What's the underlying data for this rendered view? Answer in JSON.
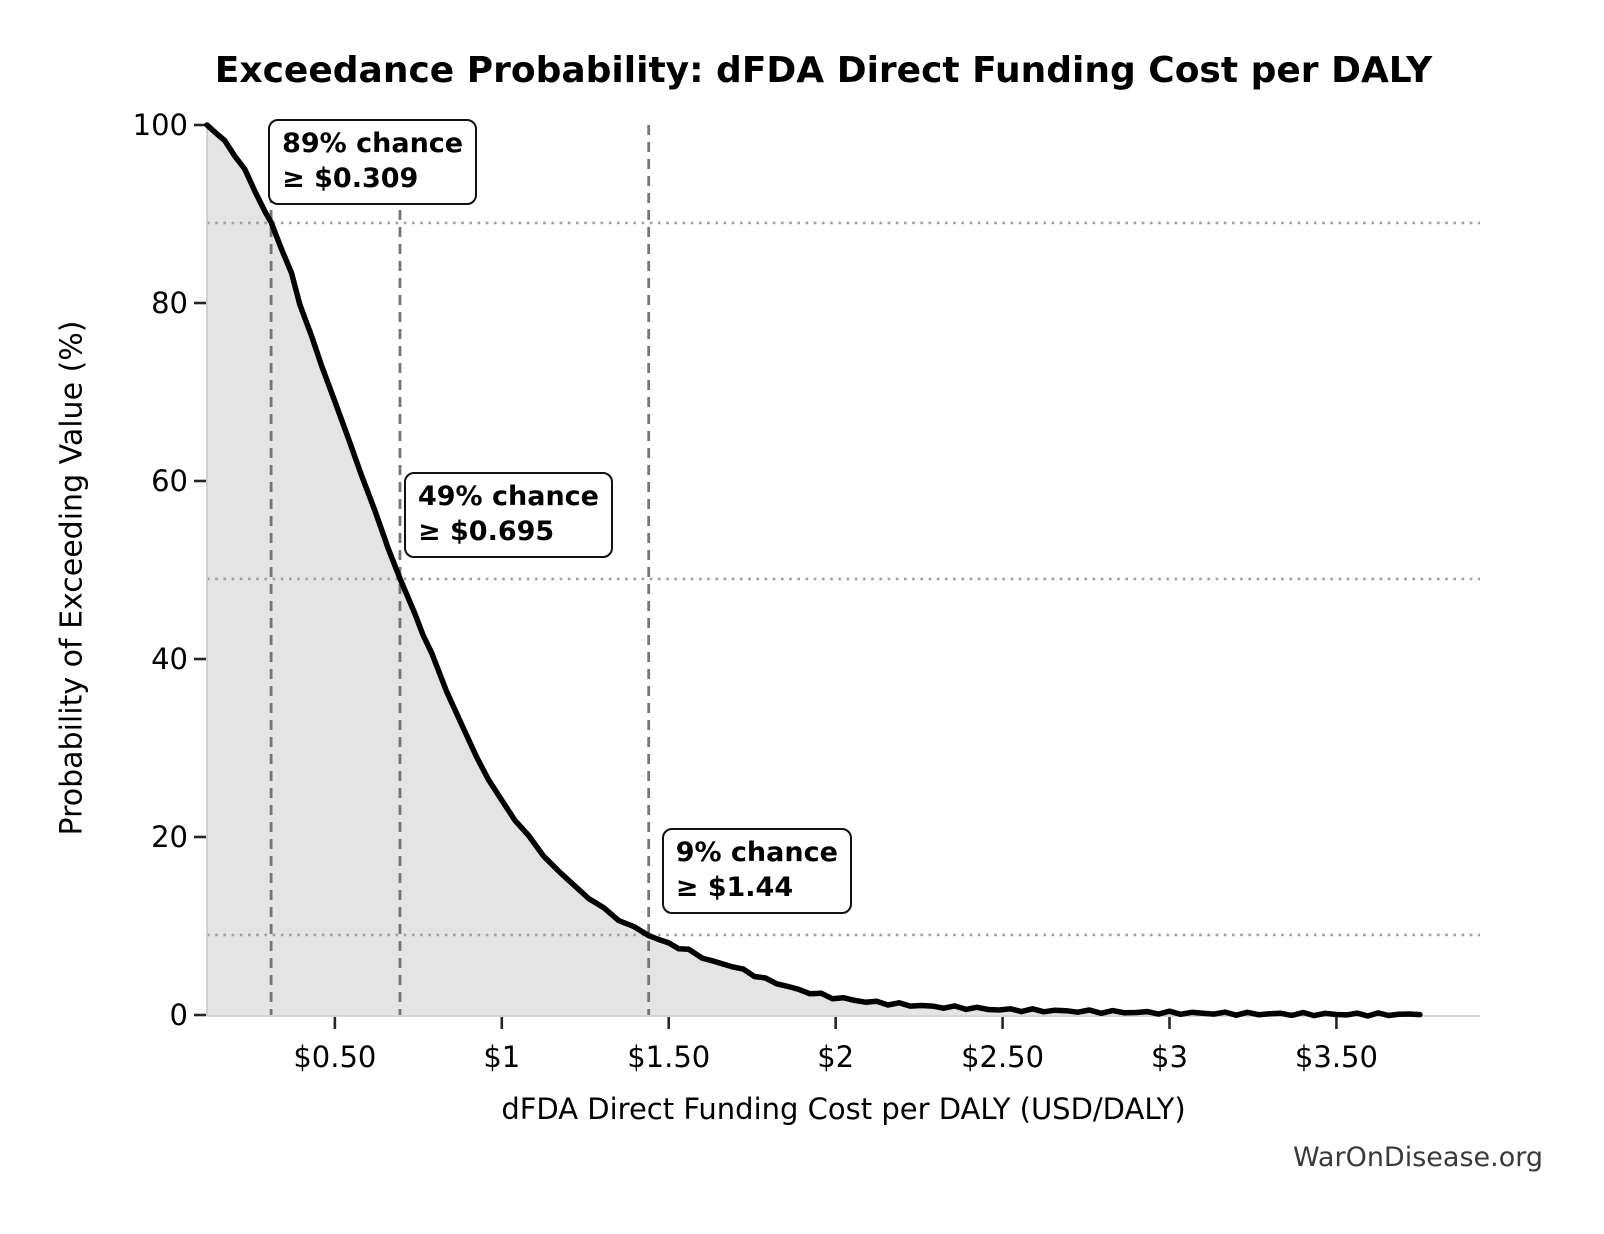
{
  "chart_data": {
    "type": "area",
    "title": "Exceedance Probability: dFDA Direct Funding Cost per DALY",
    "xlabel": "dFDA Direct Funding Cost per DALY (USD/DALY)",
    "ylabel": "Probability of Exceeding Value (%)",
    "watermark": "WarOnDisease.org",
    "xlim": [
      0.117,
      3.93
    ],
    "ylim": [
      0,
      100
    ],
    "grid": "horizontal-dotted-at-annotations-only",
    "legend": "none",
    "x_tick_values": [
      0.5,
      1.0,
      1.5,
      2.0,
      2.5,
      3.0,
      3.5
    ],
    "x_tick_labels": [
      "$0.50",
      "$1",
      "$1.50",
      "$2",
      "$2.50",
      "$3",
      "$3.50"
    ],
    "y_tick_values": [
      0,
      20,
      40,
      60,
      80,
      100
    ],
    "y_tick_labels": [
      "0",
      "20",
      "40",
      "60",
      "80",
      "100"
    ],
    "series": [
      {
        "name": "exceedance-curve",
        "x": [
          0.117,
          0.14,
          0.17,
          0.2,
          0.23,
          0.26,
          0.29,
          0.309,
          0.34,
          0.37,
          0.395,
          0.43,
          0.46,
          0.5,
          0.54,
          0.578,
          0.62,
          0.66,
          0.695,
          0.74,
          0.79,
          0.835,
          0.88,
          0.925,
          0.96,
          1.0,
          1.04,
          1.08,
          1.125,
          1.17,
          1.215,
          1.26,
          1.305,
          1.35,
          1.395,
          1.44,
          1.5,
          1.56,
          1.64,
          1.69,
          1.79,
          1.89,
          1.99,
          2.09,
          2.19,
          2.29,
          2.39,
          2.49,
          2.69,
          2.9,
          3.1,
          3.3,
          3.5,
          3.75
        ],
        "y": [
          100,
          99.3,
          98.1,
          96.7,
          94.9,
          92.7,
          90.3,
          89.0,
          86.2,
          83.2,
          80.0,
          76.2,
          73.0,
          69.0,
          64.7,
          61.0,
          56.5,
          52.5,
          49.0,
          45.0,
          40.5,
          36.5,
          32.5,
          29.0,
          26.5,
          24.0,
          22.0,
          20.0,
          18.0,
          16.1,
          14.6,
          13.2,
          11.9,
          10.8,
          9.8,
          9.0,
          8.0,
          7.2,
          5.9,
          5.5,
          4.0,
          2.8,
          2.0,
          1.5,
          1.2,
          0.95,
          0.8,
          0.6,
          0.45,
          0.3,
          0.2,
          0.12,
          0.08,
          0.05
        ]
      }
    ],
    "annotations": [
      {
        "line1": "89% chance",
        "line2": "≥ $0.309",
        "value": 0.309,
        "probability": 89
      },
      {
        "line1": "49% chance",
        "line2": "≥ $0.695",
        "value": 0.695,
        "probability": 49
      },
      {
        "line1": "9% chance",
        "line2": "≥ $1.44",
        "value": 1.44,
        "probability": 9
      }
    ],
    "colors": {
      "curve": "#000000",
      "fill": "#e4e4e4",
      "dashed_vline": "#757575",
      "dotted_hline": "#a0a0a0",
      "spine": "#c9c9c9",
      "tick": "#262626",
      "annotation_border": "#111111",
      "watermark": "#3a3a3a"
    }
  }
}
